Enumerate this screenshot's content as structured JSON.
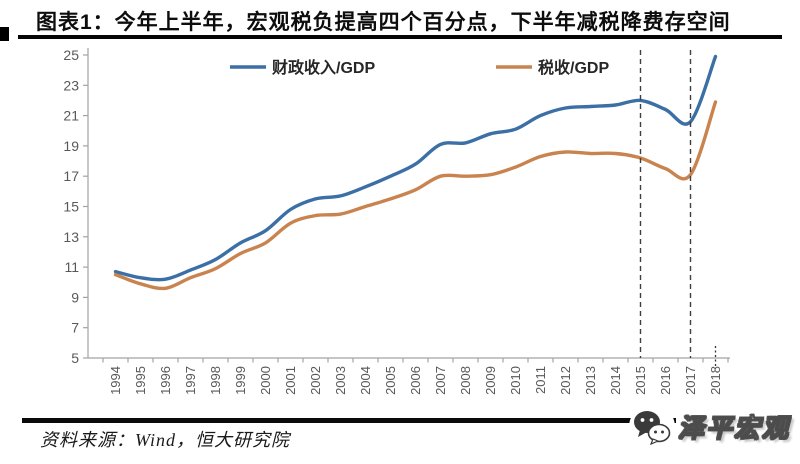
{
  "page": {
    "title": "图表1：今年上半年，宏观税负提高四个百分点，下半年减税降费存空间",
    "source_note": "资料来源：Wind，恒大研究院",
    "watermark": "泽平宏观",
    "watermark_icon": "chat-bubbles-icon"
  },
  "colors": {
    "fiscal_line": "#3b6fa6",
    "tax_line": "#c9834e",
    "axis": "#a3a3a3",
    "tick_label": "#595959",
    "legend_label": "#262626",
    "dashed_line": "#3f3f3f",
    "rule": "#050505"
  },
  "chart_data": {
    "type": "line",
    "title": "",
    "xlabel": "",
    "ylabel": "",
    "grid": false,
    "legend_position": "top",
    "ylim": [
      5,
      25
    ],
    "ytick_step": 2,
    "yticks": [
      5,
      7,
      9,
      11,
      13,
      15,
      17,
      19,
      21,
      23,
      25
    ],
    "x": [
      1994,
      1995,
      1996,
      1997,
      1998,
      1999,
      2000,
      2001,
      2002,
      2003,
      2004,
      2005,
      2006,
      2007,
      2008,
      2009,
      2010,
      2011,
      2012,
      2013,
      2014,
      2015,
      2016,
      2017,
      2018
    ],
    "series": [
      {
        "name": "财政收入/GDP",
        "color": "#3b6fa6",
        "values": [
          10.7,
          10.3,
          10.2,
          10.8,
          11.5,
          12.6,
          13.4,
          14.8,
          15.5,
          15.7,
          16.3,
          17.0,
          17.8,
          19.1,
          19.2,
          19.8,
          20.1,
          21.0,
          21.5,
          21.6,
          21.7,
          22.0,
          21.4,
          20.6,
          24.9
        ]
      },
      {
        "name": "税收/GDP",
        "color": "#c9834e",
        "values": [
          10.5,
          9.9,
          9.6,
          10.3,
          10.9,
          11.9,
          12.6,
          13.9,
          14.4,
          14.5,
          15.0,
          15.5,
          16.1,
          17.0,
          17.0,
          17.1,
          17.6,
          18.3,
          18.6,
          18.5,
          18.5,
          18.2,
          17.5,
          17.1,
          21.9
        ]
      }
    ],
    "dashed_vlines_at_years": [
      2015,
      2017
    ],
    "dotted_axis_marker_year": 2018
  }
}
